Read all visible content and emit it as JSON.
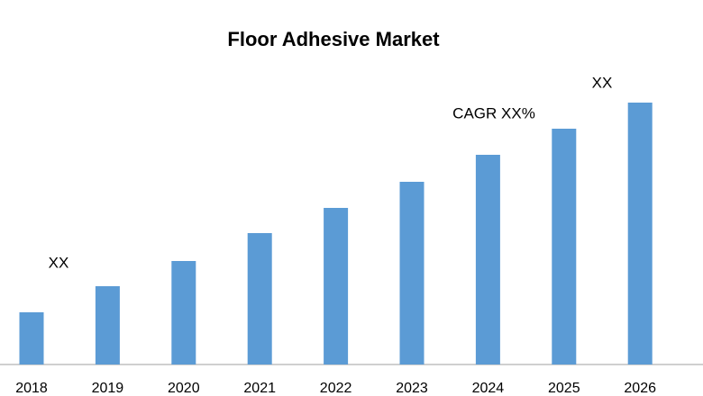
{
  "chart_data": {
    "type": "bar",
    "title": "Floor Adhesive Market",
    "categories": [
      "2018",
      "2019",
      "2020",
      "2021",
      "2022",
      "2023",
      "2024",
      "2025",
      "2026"
    ],
    "values": [
      58,
      87,
      115,
      146,
      174,
      203,
      233,
      262,
      291
    ],
    "color": "#5b9bd5",
    "ylim": [
      0,
      300
    ],
    "annotations": [
      "XX",
      "CAGR XX%",
      "XX"
    ]
  }
}
